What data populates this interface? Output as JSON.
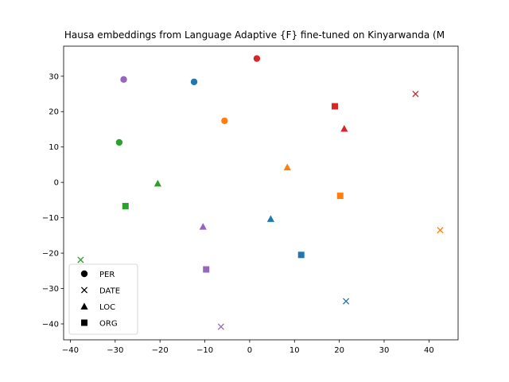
{
  "chart_data": {
    "type": "scatter",
    "title": "Hausa embeddings from Language Adaptive {F} fine-tuned on Kinyarwanda (M",
    "xlabel": "",
    "ylabel": "",
    "xlim": [
      -41.5,
      46.5
    ],
    "ylim": [
      -44.5,
      38.5
    ],
    "xticks": [
      -40,
      -30,
      -20,
      -10,
      0,
      10,
      20,
      30,
      40
    ],
    "yticks": [
      -40,
      -30,
      -20,
      -10,
      0,
      10,
      20,
      30
    ],
    "grid": false,
    "legend": {
      "position": "lower-left",
      "entries": [
        {
          "label": "PER",
          "marker": "circle"
        },
        {
          "label": "DATE",
          "marker": "x"
        },
        {
          "label": "LOC",
          "marker": "triangle"
        },
        {
          "label": "ORG",
          "marker": "square"
        }
      ]
    },
    "colors": {
      "blue": "#1f77b4",
      "orange": "#ff7f0e",
      "green": "#2ca02c",
      "red": "#d62728",
      "purple": "#9467bd"
    },
    "points": [
      {
        "x": 1.6,
        "y": 35.0,
        "marker": "circle",
        "color": "red"
      },
      {
        "x": -12.4,
        "y": 28.4,
        "marker": "circle",
        "color": "blue"
      },
      {
        "x": -28.1,
        "y": 29.1,
        "marker": "circle",
        "color": "purple"
      },
      {
        "x": -5.6,
        "y": 17.4,
        "marker": "circle",
        "color": "orange"
      },
      {
        "x": -29.1,
        "y": 11.3,
        "marker": "circle",
        "color": "green"
      },
      {
        "x": 37.0,
        "y": 25.0,
        "marker": "x",
        "color": "red"
      },
      {
        "x": 42.5,
        "y": -13.5,
        "marker": "x",
        "color": "orange"
      },
      {
        "x": -37.7,
        "y": -21.9,
        "marker": "x",
        "color": "green"
      },
      {
        "x": 21.5,
        "y": -33.6,
        "marker": "x",
        "color": "blue"
      },
      {
        "x": -6.4,
        "y": -40.8,
        "marker": "x",
        "color": "purple"
      },
      {
        "x": 21.1,
        "y": 15.2,
        "marker": "triangle",
        "color": "red"
      },
      {
        "x": 8.4,
        "y": 4.3,
        "marker": "triangle",
        "color": "orange"
      },
      {
        "x": -20.5,
        "y": -0.3,
        "marker": "triangle",
        "color": "green"
      },
      {
        "x": 4.7,
        "y": -10.3,
        "marker": "triangle",
        "color": "blue"
      },
      {
        "x": -10.4,
        "y": -12.5,
        "marker": "triangle",
        "color": "purple"
      },
      {
        "x": 19.0,
        "y": 21.5,
        "marker": "square",
        "color": "red"
      },
      {
        "x": 20.2,
        "y": -3.8,
        "marker": "square",
        "color": "orange"
      },
      {
        "x": -27.7,
        "y": -6.7,
        "marker": "square",
        "color": "green"
      },
      {
        "x": 11.5,
        "y": -20.5,
        "marker": "square",
        "color": "blue"
      },
      {
        "x": -9.7,
        "y": -24.6,
        "marker": "square",
        "color": "purple"
      }
    ]
  }
}
